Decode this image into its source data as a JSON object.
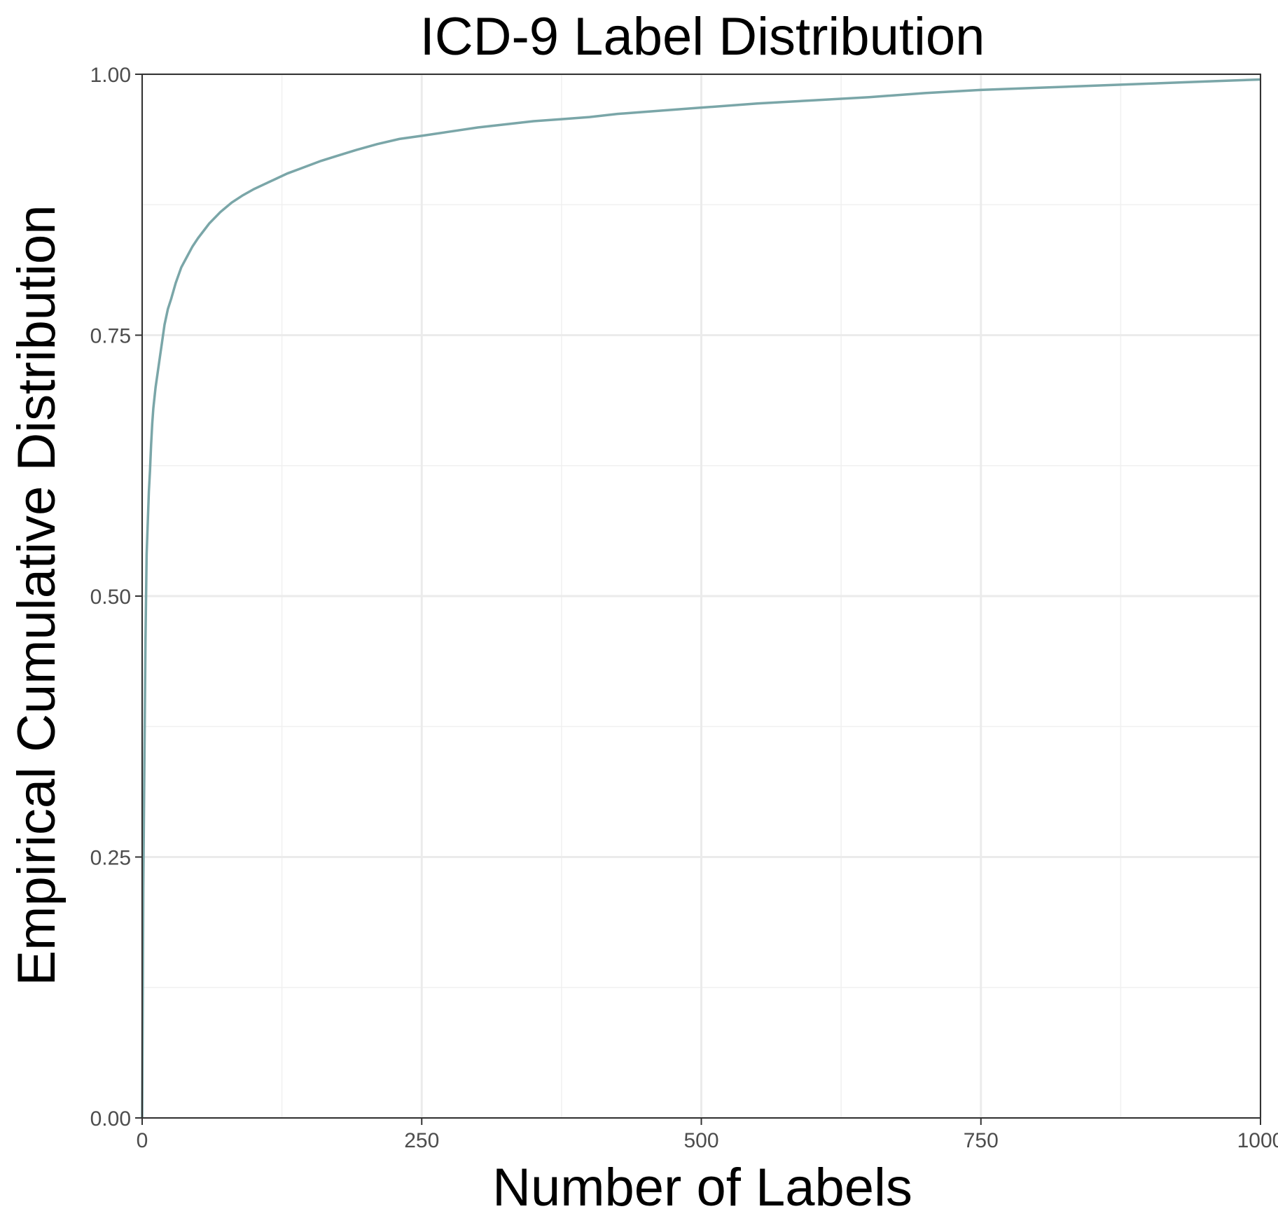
{
  "chart_data": {
    "type": "line",
    "title": "ICD-9 Label Distribution",
    "xlabel": "Number of Labels",
    "ylabel": "Empirical Cumulative Distribution",
    "xlim": [
      0,
      1000
    ],
    "ylim": [
      0,
      1
    ],
    "x_ticks": [
      0,
      250,
      500,
      750,
      1000
    ],
    "x_tick_labels": [
      "0",
      "250",
      "500",
      "750",
      "1000"
    ],
    "y_ticks": [
      0,
      0.25,
      0.5,
      0.75,
      1
    ],
    "y_tick_labels": [
      "0.00",
      "0.25",
      "0.50",
      "0.75",
      "1.00"
    ],
    "grid": true,
    "line_color": "#7aa6a8",
    "series": [
      {
        "x": [
          0,
          1,
          2,
          3,
          4,
          5,
          6,
          7,
          8,
          9,
          10,
          12,
          14,
          16,
          18,
          20,
          23,
          26,
          30,
          35,
          40,
          45,
          50,
          55,
          60,
          70,
          80,
          90,
          100,
          110,
          120,
          130,
          140,
          150,
          160,
          175,
          190,
          210,
          230,
          250,
          275,
          300,
          325,
          350,
          375,
          400,
          425,
          450,
          475,
          500,
          550,
          600,
          650,
          700,
          750,
          800,
          850,
          900,
          950,
          1000
        ],
        "y": [
          0.0,
          0.22,
          0.34,
          0.46,
          0.54,
          0.57,
          0.6,
          0.62,
          0.645,
          0.665,
          0.68,
          0.7,
          0.715,
          0.73,
          0.745,
          0.76,
          0.775,
          0.785,
          0.8,
          0.815,
          0.825,
          0.835,
          0.843,
          0.85,
          0.857,
          0.868,
          0.877,
          0.884,
          0.89,
          0.895,
          0.9,
          0.905,
          0.909,
          0.913,
          0.917,
          0.922,
          0.927,
          0.933,
          0.938,
          0.941,
          0.945,
          0.949,
          0.952,
          0.955,
          0.957,
          0.959,
          0.962,
          0.964,
          0.966,
          0.968,
          0.972,
          0.975,
          0.978,
          0.982,
          0.985,
          0.987,
          0.989,
          0.991,
          0.993,
          0.995
        ]
      }
    ]
  }
}
